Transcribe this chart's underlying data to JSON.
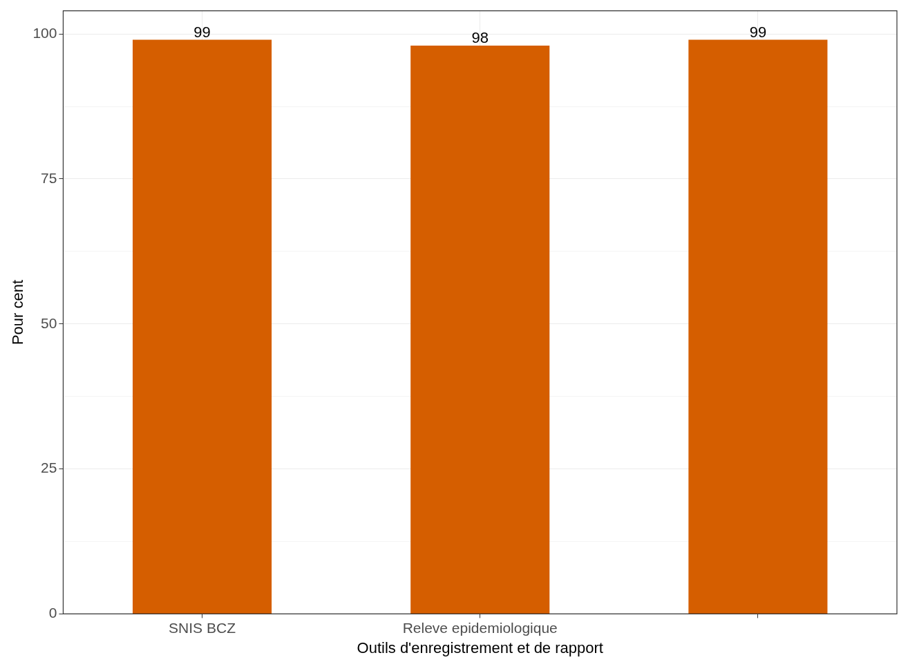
{
  "chart_data": {
    "type": "bar",
    "xlabel": "Outils d'enregistrement et de rapport",
    "ylabel": "Pour cent",
    "categories": [
      "SNIS BCZ",
      "Releve epidemiologique",
      null
    ],
    "values": [
      99,
      98,
      99
    ],
    "color": "#d55e00",
    "ylim": [
      0,
      104
    ],
    "yticks": [
      0,
      {
        "value": 12.5,
        "label": null
      },
      25,
      {
        "value": 37.5,
        "label": null
      },
      50,
      {
        "value": 62.5,
        "label": null
      },
      75,
      {
        "value": 87.5,
        "label": null
      },
      100
    ],
    "grid": true,
    "data_labels": true
  }
}
